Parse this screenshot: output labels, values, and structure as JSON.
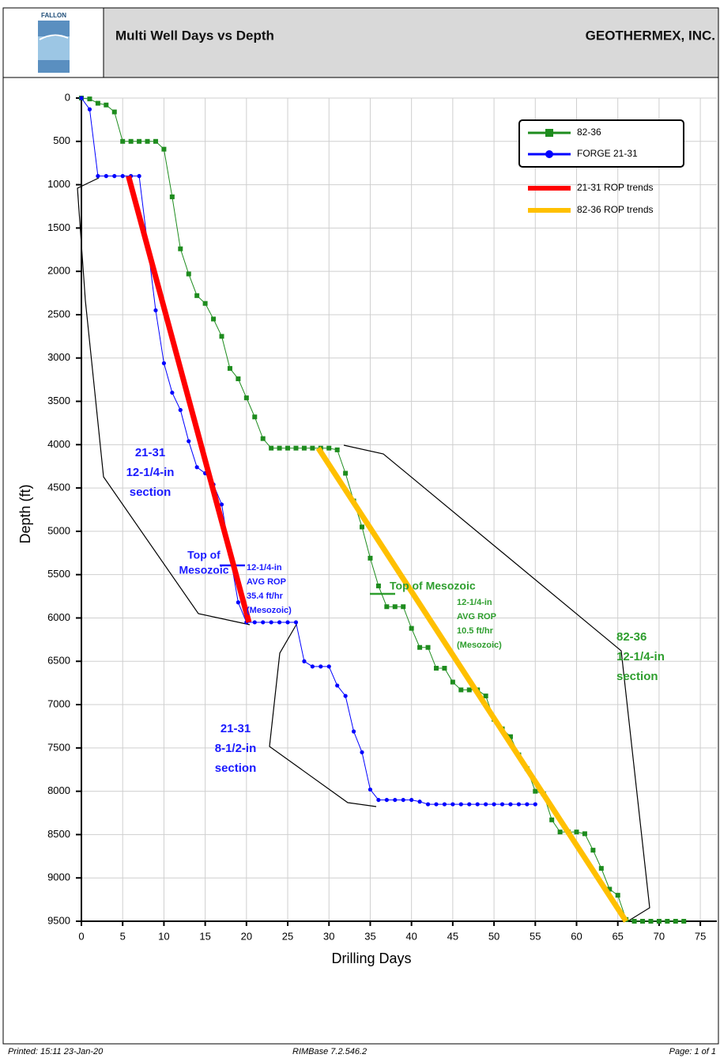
{
  "header": {
    "logo_text": "FALLON",
    "title": "Multi Well Days vs Depth",
    "company": "GEOTHERMEX, INC."
  },
  "chart_data": {
    "type": "line",
    "xlabel": "Drilling Days",
    "ylabel": "Depth (ft)",
    "xlim": [
      0,
      77
    ],
    "xticks": [
      0,
      5,
      10,
      15,
      20,
      25,
      30,
      35,
      40,
      45,
      50,
      55,
      60,
      65,
      70,
      75
    ],
    "ylim": [
      0,
      9500
    ],
    "yticks": [
      0,
      500,
      1000,
      1500,
      2000,
      2500,
      3000,
      3500,
      4000,
      4500,
      5000,
      5500,
      6000,
      6500,
      7000,
      7500,
      8000,
      8500,
      9000,
      9500
    ],
    "y_inverted": true,
    "grid": true,
    "series": [
      {
        "name": "82-36",
        "color": "#1e8c1e",
        "marker": "square",
        "x": [
          0,
          1,
          2,
          3,
          4,
          5,
          6,
          7,
          8,
          9,
          10,
          11,
          12,
          13,
          14,
          15,
          16,
          17,
          18,
          19,
          20,
          21,
          22,
          23,
          24,
          25,
          26,
          27,
          28,
          29,
          30,
          31,
          32,
          33,
          34,
          35,
          36,
          37,
          38,
          39,
          40,
          41,
          42,
          43,
          44,
          45,
          46,
          47,
          48,
          49,
          50,
          51,
          52,
          53,
          54,
          55,
          56,
          57,
          58,
          59,
          60,
          61,
          62,
          63,
          64,
          65,
          66,
          67,
          68,
          69,
          70,
          71,
          72,
          73
        ],
        "values": [
          0,
          10,
          60,
          80,
          160,
          500,
          500,
          500,
          500,
          500,
          590,
          1140,
          1740,
          2030,
          2280,
          2370,
          2550,
          2750,
          3120,
          3240,
          3460,
          3680,
          3930,
          4040,
          4040,
          4040,
          4040,
          4040,
          4040,
          4040,
          4040,
          4060,
          4330,
          4650,
          4950,
          5310,
          5630,
          5870,
          5870,
          5870,
          6120,
          6340,
          6340,
          6580,
          6580,
          6740,
          6830,
          6830,
          6830,
          6900,
          7170,
          7280,
          7370,
          7580,
          7740,
          8000,
          8030,
          8330,
          8470,
          8470,
          8470,
          8490,
          8680,
          8890,
          9130,
          9200,
          9480,
          9500,
          9500,
          9500,
          9500,
          9500,
          9500,
          9500
        ]
      },
      {
        "name": "FORGE 21-31",
        "color": "#0000ff",
        "marker": "circle",
        "x": [
          0,
          1,
          2,
          3,
          4,
          5,
          6,
          7,
          9,
          10,
          11,
          12,
          13,
          14,
          15,
          16,
          17,
          18,
          19,
          20,
          21,
          22,
          23,
          24,
          25,
          26,
          27,
          28,
          29,
          30,
          31,
          32,
          33,
          34,
          35,
          36,
          37,
          38,
          39,
          40,
          41,
          42,
          43,
          44,
          45,
          46,
          47,
          48,
          49,
          50,
          51,
          52,
          53,
          54,
          55
        ],
        "values": [
          0,
          130,
          900,
          900,
          900,
          900,
          900,
          900,
          2450,
          3060,
          3400,
          3600,
          3960,
          4260,
          4330,
          4460,
          4690,
          5270,
          5820,
          6050,
          6050,
          6050,
          6050,
          6050,
          6050,
          6050,
          6500,
          6560,
          6560,
          6560,
          6780,
          6900,
          7310,
          7550,
          7980,
          8100,
          8100,
          8100,
          8100,
          8100,
          8120,
          8150,
          8150,
          8150,
          8150,
          8150,
          8150,
          8150,
          8150,
          8150,
          8150,
          8150,
          8150,
          8150,
          8150
        ]
      }
    ],
    "trend_lines": [
      {
        "name": "21-31 ROP trends",
        "color": "#ff0000",
        "x": [
          5.7,
          20.3
        ],
        "values": [
          900,
          6050
        ]
      },
      {
        "name": "82-36 ROP trends",
        "color": "#ffc000",
        "x": [
          28.7,
          66
        ],
        "values": [
          4040,
          9500
        ]
      }
    ],
    "annotations": [
      {
        "lines": [
          "21-31",
          "12-1/4-in",
          "section"
        ],
        "color": "#1a1aff"
      },
      {
        "lines": [
          "Top of",
          "Mesozoic"
        ],
        "color": "#1a1aff"
      },
      {
        "lines": [
          "12-1/4-in",
          "AVG ROP",
          "35.4 ft/hr",
          "(Mesozoic)"
        ],
        "color": "#1a1aff"
      },
      {
        "lines": [
          "Top of Mesozoic"
        ],
        "color": "#2e9e2e"
      },
      {
        "lines": [
          "12-1/4-in",
          "AVG ROP",
          "10.5 ft/hr",
          "(Mesozoic)"
        ],
        "color": "#2e9e2e"
      },
      {
        "lines": [
          "21-31",
          "8-1/2-in",
          "section"
        ],
        "color": "#1a1aff"
      },
      {
        "lines": [
          "82-36",
          "12-1/4-in",
          "section"
        ],
        "color": "#2e9e2e"
      }
    ]
  },
  "footer": {
    "printed": "Printed:  15:11  23-Jan-20",
    "software": "RIMBase 7.2.546.2",
    "page": "Page: 1 of 1"
  }
}
